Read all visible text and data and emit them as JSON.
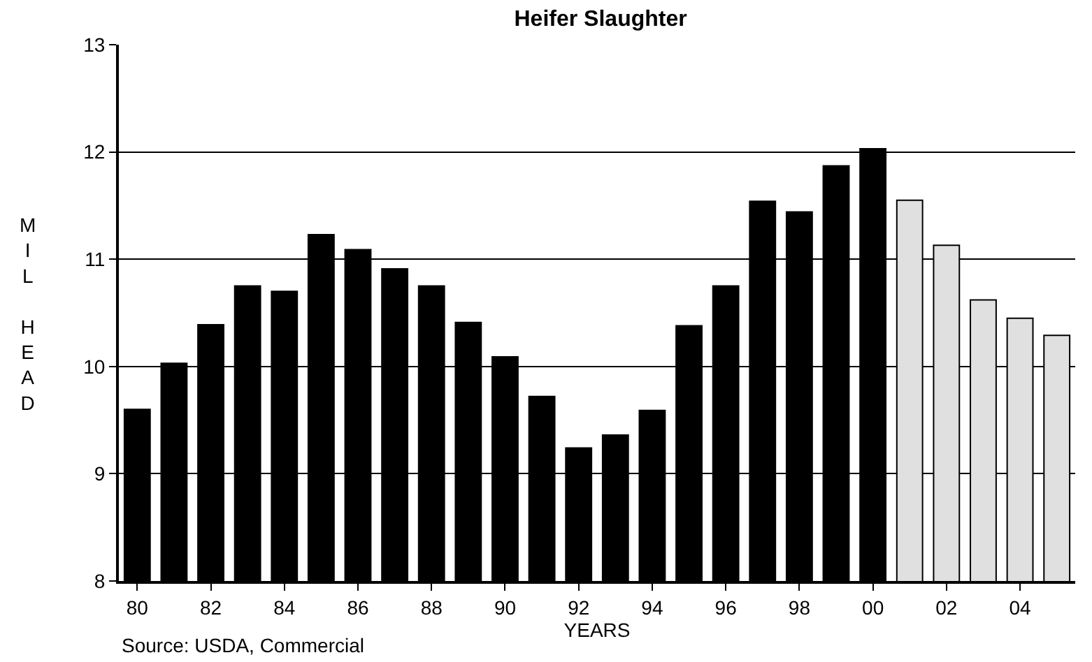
{
  "chart_data": {
    "type": "bar",
    "title": "Heifer Slaughter",
    "xlabel": "YEARS",
    "ylabel": "MIL HEAD",
    "categories": [
      "80",
      null,
      "82",
      null,
      "84",
      null,
      "86",
      null,
      "88",
      null,
      "90",
      null,
      "92",
      null,
      "94",
      null,
      "96",
      null,
      "98",
      null,
      "00",
      null,
      "02",
      null,
      "04",
      null
    ],
    "values": [
      9.6,
      10.03,
      10.39,
      10.75,
      10.7,
      11.23,
      11.09,
      10.91,
      10.75,
      10.41,
      10.09,
      9.72,
      9.24,
      9.36,
      9.59,
      10.38,
      10.75,
      11.54,
      11.44,
      11.87,
      12.03,
      11.55,
      11.13,
      10.62,
      10.45,
      10.29
    ],
    "colors": [
      "#000000",
      "#000000",
      "#000000",
      "#000000",
      "#000000",
      "#000000",
      "#000000",
      "#000000",
      "#000000",
      "#000000",
      "#000000",
      "#000000",
      "#000000",
      "#000000",
      "#000000",
      "#000000",
      "#000000",
      "#000000",
      "#000000",
      "#000000",
      "#000000",
      "#e0e0e0",
      "#e0e0e0",
      "#e0e0e0",
      "#e0e0e0",
      "#e0e0e0"
    ],
    "ylim": [
      8,
      13
    ],
    "yticks": [
      8,
      9,
      10,
      11,
      12,
      13
    ],
    "grid": "y",
    "annotations": [
      "Source: USDA, Commercial"
    ]
  }
}
